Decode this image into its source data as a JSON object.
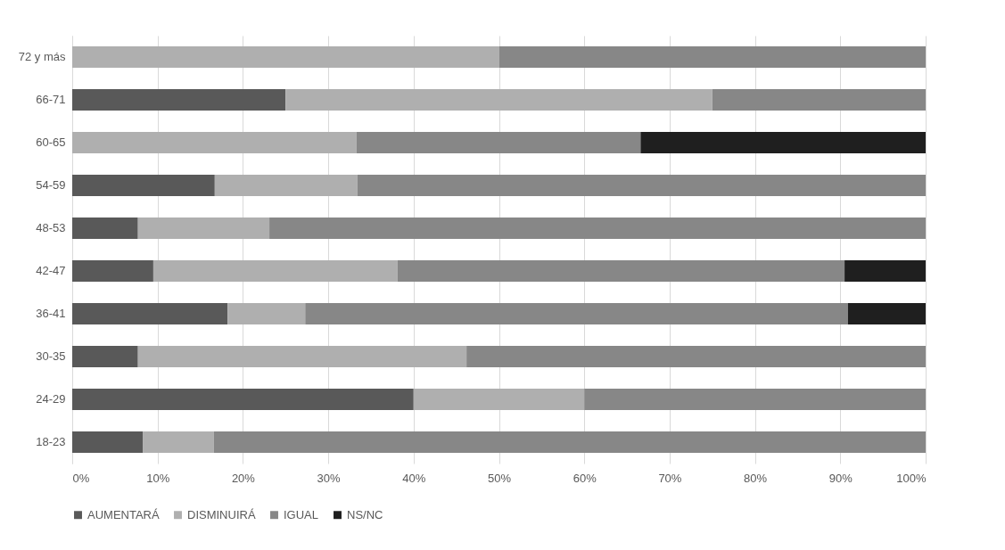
{
  "chart_data": {
    "type": "bar",
    "orientation": "horizontal",
    "stacked": true,
    "legend": "bottom",
    "grid": "x",
    "categories": [
      "72 y más",
      "66-71",
      "60-65",
      "54-59",
      "48-53",
      "42-47",
      "36-41",
      "30-35",
      "24-29",
      "18-23"
    ],
    "series": [
      {
        "name": "AUMENTARÁ",
        "color": "#595959",
        "values": [
          0,
          25,
          0,
          16.7,
          7.7,
          9.5,
          18.2,
          7.7,
          40,
          8.3
        ]
      },
      {
        "name": "DISMINUIRÁ",
        "color": "#afafaf",
        "values": [
          50,
          50,
          33.3,
          16.7,
          15.4,
          28.6,
          9.1,
          38.5,
          20,
          8.3
        ]
      },
      {
        "name": "IGUAL",
        "color": "#878787",
        "values": [
          50,
          25,
          33.3,
          66.6,
          76.9,
          52.4,
          63.6,
          53.8,
          40,
          83.4
        ]
      },
      {
        "name": "NS/NC",
        "color": "#1f1f1f",
        "values": [
          0,
          0,
          33.4,
          0,
          0,
          9.5,
          9.1,
          0,
          0,
          0
        ]
      }
    ],
    "xlim": [
      0,
      100
    ],
    "xticks": [
      {
        "value": 0,
        "label": "0%"
      },
      {
        "value": 10,
        "label": "10%"
      },
      {
        "value": 20,
        "label": "20%"
      },
      {
        "value": 30,
        "label": "30%"
      },
      {
        "value": 40,
        "label": "40%"
      },
      {
        "value": 50,
        "label": "50%"
      },
      {
        "value": 60,
        "label": "60%"
      },
      {
        "value": 70,
        "label": "70%"
      },
      {
        "value": 80,
        "label": "80%"
      },
      {
        "value": 90,
        "label": "90%"
      },
      {
        "value": 100,
        "label": "100%"
      }
    ]
  }
}
